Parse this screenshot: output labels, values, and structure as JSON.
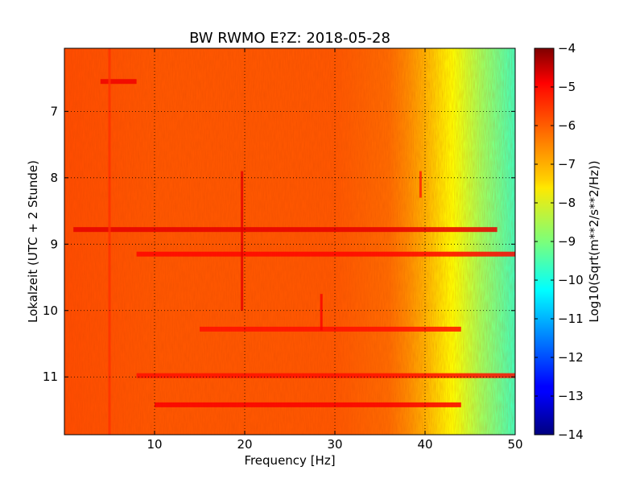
{
  "chart_data": {
    "type": "heatmap",
    "title": "BW RWMO E?Z: 2018-05-28",
    "xlabel": "Frequency [Hz]",
    "ylabel": "Lokalzeit (UTC + 2 Stunde)",
    "xlim": [
      0,
      50
    ],
    "ylim": [
      11.87,
      6.05
    ],
    "y_inverted": true,
    "grid": true,
    "x_ticks": [
      10,
      20,
      30,
      40,
      50
    ],
    "x_tick_labels": [
      "10",
      "20",
      "30",
      "40",
      "50"
    ],
    "y_ticks": [
      7,
      8,
      9,
      10,
      11
    ],
    "y_tick_labels": [
      "7",
      "8",
      "9",
      "10",
      "11"
    ],
    "colorbar": {
      "label": "Log10(Sqrt(m**2/s**2/Hz))",
      "range": [
        -14,
        -4
      ],
      "ticks": [
        -4,
        -5,
        -6,
        -7,
        -8,
        -9,
        -10,
        -11,
        -12,
        -13,
        -14
      ],
      "tick_labels": [
        "−4",
        "−5",
        "−6",
        "−7",
        "−8",
        "−9",
        "−10",
        "−11",
        "−12",
        "−13",
        "−14"
      ],
      "colormap": "jet"
    },
    "frequency_profile": {
      "frequency_hz": [
        0,
        10,
        20,
        30,
        36,
        38,
        40,
        42,
        44,
        46,
        48,
        50
      ],
      "log10_amplitude": [
        -6.0,
        -6.1,
        -6.1,
        -6.1,
        -6.3,
        -6.6,
        -7.0,
        -7.5,
        -8.0,
        -8.6,
        -9.1,
        -9.6
      ]
    },
    "horizontal_bands": [
      {
        "time": 8.78,
        "freq_range": [
          1,
          48
        ],
        "log10_amplitude": -5.0
      },
      {
        "time": 9.15,
        "freq_range": [
          8,
          50
        ],
        "log10_amplitude": -5.3
      },
      {
        "time": 10.28,
        "freq_range": [
          15,
          44
        ],
        "log10_amplitude": -5.4
      },
      {
        "time": 10.98,
        "freq_range": [
          8,
          50
        ],
        "log10_amplitude": -5.4
      },
      {
        "time": 11.42,
        "freq_range": [
          10,
          44
        ],
        "log10_amplitude": -5.2
      },
      {
        "time": 6.55,
        "freq_range": [
          4,
          8
        ],
        "log10_amplitude": -5.1
      }
    ],
    "vertical_lines": [
      {
        "frequency": 5.0,
        "time_range": [
          6.05,
          11.87
        ],
        "log10_amplitude": -5.7
      },
      {
        "frequency": 19.7,
        "time_range": [
          7.9,
          10.0
        ],
        "log10_amplitude": -5.0
      },
      {
        "frequency": 28.5,
        "time_range": [
          9.75,
          10.3
        ],
        "log10_amplitude": -5.2
      },
      {
        "frequency": 39.5,
        "time_range": [
          7.9,
          8.3
        ],
        "log10_amplitude": -5.5
      }
    ]
  }
}
